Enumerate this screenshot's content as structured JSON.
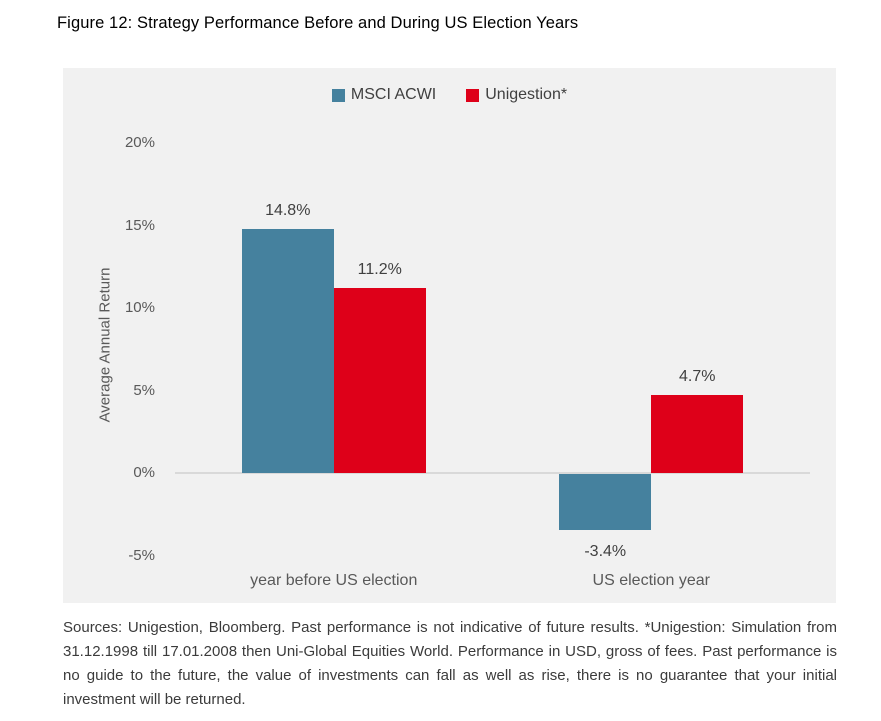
{
  "figure": {
    "title": "Figure 12: Strategy Performance Before and During US Election Years",
    "footer": "Sources: Unigestion, Bloomberg. Past performance is not indicative of future results. *Unigestion: Simulation from 31.12.1998 till 17.01.2008 then Uni-Global Equities World. Performance in USD, gross of fees. Past performance is no guide to the future, the value of investments can fall as well as rise, there is no guarantee that your initial investment will be returned."
  },
  "colors": {
    "bar_blue": "#45819e",
    "bar_red": "#de0019",
    "panel_bg": "#f1f1f1",
    "zero_line": "#d9d9d9",
    "axis_text": "#595959",
    "value_text": "#404040",
    "title_text": "#000000",
    "footer_text": "#3b3b3b"
  },
  "chart_data": {
    "type": "bar",
    "title": "Figure 12: Strategy Performance Before and During US Election Years",
    "categories": [
      "year before US election",
      "US election year"
    ],
    "series": [
      {
        "name": "MSCI ACWI",
        "color": "#45819e",
        "values": [
          14.8,
          -3.4
        ],
        "labels": [
          "14.8%",
          "-3.4%"
        ]
      },
      {
        "name": "Unigestion*",
        "color": "#de0019",
        "values": [
          11.2,
          4.7
        ],
        "labels": [
          "11.2%",
          "4.7%"
        ]
      }
    ],
    "xlabel": "",
    "ylabel": "Average Annual Return",
    "ylim": [
      -7.5,
      22
    ],
    "yticks": {
      "values": [
        20,
        15,
        10,
        5,
        0,
        -5
      ],
      "labels": [
        "20%",
        "15%",
        "10%",
        "5%",
        "0%",
        "-5%"
      ]
    },
    "grid": "zero-line-only",
    "legend_position": "top-center",
    "data_labels": true
  }
}
